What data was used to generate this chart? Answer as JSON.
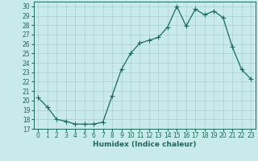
{
  "xlabel": "Humidex (Indice chaleur)",
  "x": [
    0,
    1,
    2,
    3,
    4,
    5,
    6,
    7,
    8,
    9,
    10,
    11,
    12,
    13,
    14,
    15,
    16,
    17,
    18,
    19,
    20,
    21,
    22,
    23
  ],
  "y": [
    20.3,
    19.3,
    18.0,
    17.8,
    17.5,
    17.5,
    17.5,
    17.7,
    20.5,
    23.3,
    25.0,
    26.1,
    26.4,
    26.7,
    27.8,
    30.0,
    27.9,
    29.7,
    29.1,
    29.5,
    28.8,
    25.7,
    23.3,
    22.3
  ],
  "line_color": "#1a6b5a",
  "marker": "+",
  "marker_size": 4,
  "bg_color": "#c8eaea",
  "grid_color": "#aacece",
  "ylim": [
    17,
    30.5
  ],
  "xlim": [
    -0.5,
    23.5
  ],
  "yticks": [
    17,
    18,
    19,
    20,
    21,
    22,
    23,
    24,
    25,
    26,
    27,
    28,
    29,
    30
  ],
  "xticks": [
    0,
    1,
    2,
    3,
    4,
    5,
    6,
    7,
    8,
    9,
    10,
    11,
    12,
    13,
    14,
    15,
    16,
    17,
    18,
    19,
    20,
    21,
    22,
    23
  ],
  "tick_label_fontsize": 5.5,
  "axis_label_fontsize": 6.5,
  "label_color": "#1a6b5a"
}
